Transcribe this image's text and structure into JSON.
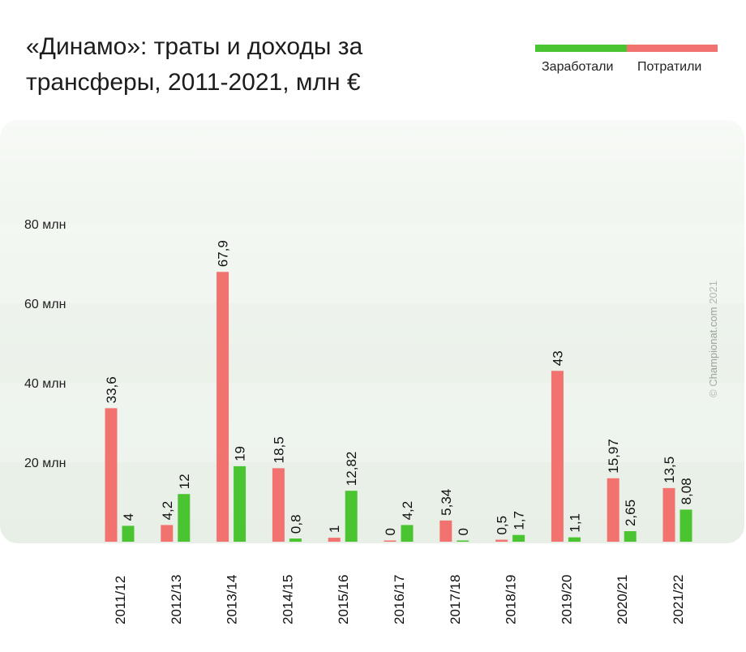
{
  "title": "«Динамо»: траты и доходы за трансферы, 2011-2021, млн €",
  "legend": {
    "earned_label": "Заработали",
    "spent_label": "Потратили",
    "earned_color": "#4ac431",
    "spent_color": "#f2726f"
  },
  "copyright": "© Championat.com 2021",
  "chart_data": {
    "type": "bar",
    "title": "«Динамо»: траты и доходы за трансферы, 2011-2021, млн €",
    "xlabel": "",
    "ylabel": "",
    "ylim": [
      0,
      100
    ],
    "yticks": [
      20,
      40,
      60,
      80
    ],
    "ytick_labels": [
      "20 млн",
      "40 млн",
      "60 млн",
      "80 млн"
    ],
    "categories": [
      "2011/12",
      "2012/13",
      "2013/14",
      "2014/15",
      "2015/16",
      "2016/17",
      "2017/18",
      "2018/19",
      "2019/20",
      "2020/21",
      "2021/22"
    ],
    "series": [
      {
        "name": "Потратили",
        "color": "#f2726f",
        "values": [
          33.6,
          4.2,
          67.9,
          18.5,
          1,
          0,
          5.34,
          0.5,
          43,
          15.97,
          13.5
        ],
        "labels": [
          "33,6",
          "4,2",
          "67,9",
          "18,5",
          "1",
          "0",
          "5,34",
          "0,5",
          "43",
          "15,97",
          "13,5"
        ]
      },
      {
        "name": "Заработали",
        "color": "#4ac431",
        "values": [
          4,
          12,
          19,
          0.8,
          12.82,
          4.2,
          0,
          1.7,
          1.1,
          2.65,
          8.08
        ],
        "labels": [
          "4",
          "12",
          "19",
          "0,8",
          "12,82",
          "4,2",
          "0",
          "1,7",
          "1,1",
          "2,65",
          "8,08"
        ]
      }
    ],
    "grid": false,
    "legend_position": "top-right"
  }
}
